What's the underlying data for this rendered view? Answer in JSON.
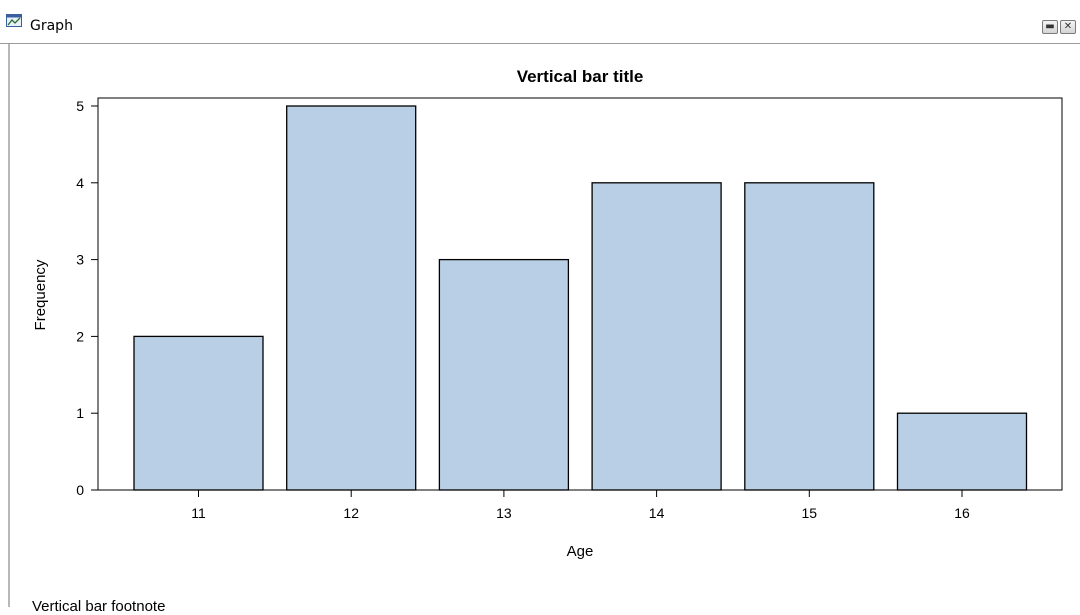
{
  "window": {
    "title": "Graph",
    "icon": "graph-window-icon",
    "buttons": [
      {
        "name": "minimize-button",
        "icon": "minimize-icon"
      },
      {
        "name": "close-button",
        "icon": "close-icon"
      }
    ]
  },
  "chart_data": {
    "type": "bar",
    "title": "Vertical bar title",
    "xlabel": "Age",
    "ylabel": "Frequency",
    "categories": [
      "11",
      "12",
      "13",
      "14",
      "15",
      "16"
    ],
    "values": [
      2,
      5,
      3,
      4,
      4,
      1
    ],
    "ylim": [
      0,
      5
    ],
    "yticks": [
      0,
      1,
      2,
      3,
      4,
      5
    ],
    "bar_color": "#b9cfe6",
    "bar_edge_color": "#000000",
    "grid": false,
    "footnote": "Vertical bar footnote"
  }
}
